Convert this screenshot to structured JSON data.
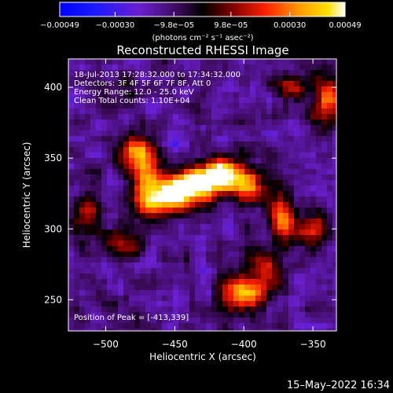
{
  "chart_data": {
    "type": "heatmap",
    "title": "Reconstructed RHESSI Image",
    "xlabel": "Heliocentric X (arcsec)",
    "ylabel": "Heliocentric Y (arcsec)",
    "xlim": [
      -527,
      -333
    ],
    "ylim": [
      228,
      420
    ],
    "x_ticks": [
      {
        "value": -500,
        "label": "−500"
      },
      {
        "value": -450,
        "label": "−450"
      },
      {
        "value": -400,
        "label": "−400"
      },
      {
        "value": -350,
        "label": "−350"
      }
    ],
    "y_ticks": [
      {
        "value": 250,
        "label": "250"
      },
      {
        "value": 300,
        "label": "300"
      },
      {
        "value": 350,
        "label": "350"
      },
      {
        "value": 400,
        "label": "400"
      }
    ],
    "colorbar": {
      "min": -0.00049,
      "max": 0.00049,
      "unit_label": "(photons cm⁻² s⁻¹ asec⁻²)",
      "ticks": [
        {
          "value": -0.00049,
          "label": "−0.00049"
        },
        {
          "value": -0.0003,
          "label": "−0.00030"
        },
        {
          "value": -9.8e-05,
          "label": "−9.8e−05"
        },
        {
          "value": 9.8e-05,
          "label": "9.8e−05"
        },
        {
          "value": 0.0003,
          "label": "0.00030"
        },
        {
          "value": 0.00049,
          "label": "0.00049"
        }
      ]
    },
    "annotations": {
      "time_range": "18-Jul-2013 17:28:32.000 to 17:34:32.000",
      "detectors": "Detectors: 3F 4F 5F 6F 7F 8F, Att 0",
      "energy_range": "Energy Range: 12.0 - 25.0 keV",
      "clean": "Clean     Total counts: 1.10E+04",
      "peak": "Position of Peak = [-413,339]"
    },
    "emission_sources": [
      {
        "x": -413,
        "y": 339,
        "intensity": 1.0,
        "sx": 10,
        "sy": 8
      },
      {
        "x": -432,
        "y": 332,
        "intensity": 0.85,
        "sx": 12,
        "sy": 8
      },
      {
        "x": -450,
        "y": 326,
        "intensity": 0.8,
        "sx": 12,
        "sy": 9
      },
      {
        "x": -468,
        "y": 320,
        "intensity": 0.6,
        "sx": 10,
        "sy": 10
      },
      {
        "x": -478,
        "y": 356,
        "intensity": 0.72,
        "sx": 9,
        "sy": 8
      },
      {
        "x": -472,
        "y": 340,
        "intensity": 0.5,
        "sx": 8,
        "sy": 10
      },
      {
        "x": -395,
        "y": 330,
        "intensity": 0.55,
        "sx": 10,
        "sy": 8
      },
      {
        "x": -372,
        "y": 305,
        "intensity": 0.62,
        "sx": 8,
        "sy": 12
      },
      {
        "x": -352,
        "y": 300,
        "intensity": 0.5,
        "sx": 8,
        "sy": 10
      },
      {
        "x": -400,
        "y": 255,
        "intensity": 0.72,
        "sx": 12,
        "sy": 9
      },
      {
        "x": -385,
        "y": 272,
        "intensity": 0.45,
        "sx": 8,
        "sy": 10
      },
      {
        "x": -340,
        "y": 390,
        "intensity": 0.62,
        "sx": 8,
        "sy": 12
      },
      {
        "x": -365,
        "y": 400,
        "intensity": 0.4,
        "sx": 8,
        "sy": 8
      },
      {
        "x": -515,
        "y": 310,
        "intensity": 0.4,
        "sx": 8,
        "sy": 10
      },
      {
        "x": -488,
        "y": 290,
        "intensity": 0.35,
        "sx": 10,
        "sy": 8
      },
      {
        "x": -495,
        "y": 400,
        "intensity": 0.3,
        "sx": 10,
        "sy": 8
      }
    ]
  },
  "footer": {
    "date_stamp": "15–May–2022 16:34"
  }
}
